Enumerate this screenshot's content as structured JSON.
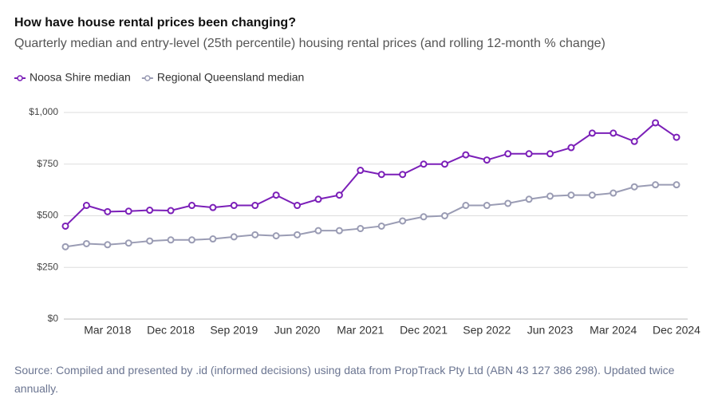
{
  "chart_data": {
    "type": "line",
    "title": "How have house rental prices been changing?",
    "subtitle": "Quarterly median and entry-level (25th percentile) housing rental prices (and rolling 12-month % change)",
    "source": "Source: Compiled and presented by .id (informed decisions) using data from PropTrack Pty Ltd (ABN 43 127 386 298). Updated twice annually.",
    "categories": [
      null,
      null,
      "Mar 2018",
      null,
      null,
      "Dec 2018",
      null,
      null,
      "Sep 2019",
      null,
      null,
      "Jun 2020",
      null,
      null,
      "Mar 2021",
      null,
      null,
      "Dec 2021",
      null,
      null,
      "Sep 2022",
      null,
      null,
      "Jun 2023",
      null,
      null,
      "Mar 2024",
      null,
      null,
      "Dec 2024"
    ],
    "series": [
      {
        "name": "Noosa Shire median",
        "color": "#7b1fb8",
        "values": [
          450,
          550,
          520,
          522,
          527,
          525,
          550,
          540,
          550,
          550,
          600,
          550,
          580,
          600,
          720,
          700,
          700,
          750,
          750,
          795,
          770,
          800,
          800,
          800,
          830,
          900,
          900,
          860,
          950,
          880
        ]
      },
      {
        "name": "Regional Queensland median",
        "color": "#9a9cb4",
        "values": [
          350,
          365,
          360,
          368,
          378,
          383,
          383,
          388,
          398,
          408,
          403,
          408,
          428,
          428,
          438,
          450,
          475,
          495,
          500,
          550,
          550,
          560,
          580,
          595,
          600,
          600,
          610,
          640,
          650,
          650
        ]
      }
    ],
    "ylim": [
      0,
      1000
    ],
    "yticks": [
      {
        "value": 0,
        "label": "$0"
      },
      {
        "value": 250,
        "label": "$250"
      },
      {
        "value": 500,
        "label": "$500"
      },
      {
        "value": 750,
        "label": "$750"
      },
      {
        "value": 1000,
        "label": "$1,000"
      }
    ],
    "grid": true
  }
}
